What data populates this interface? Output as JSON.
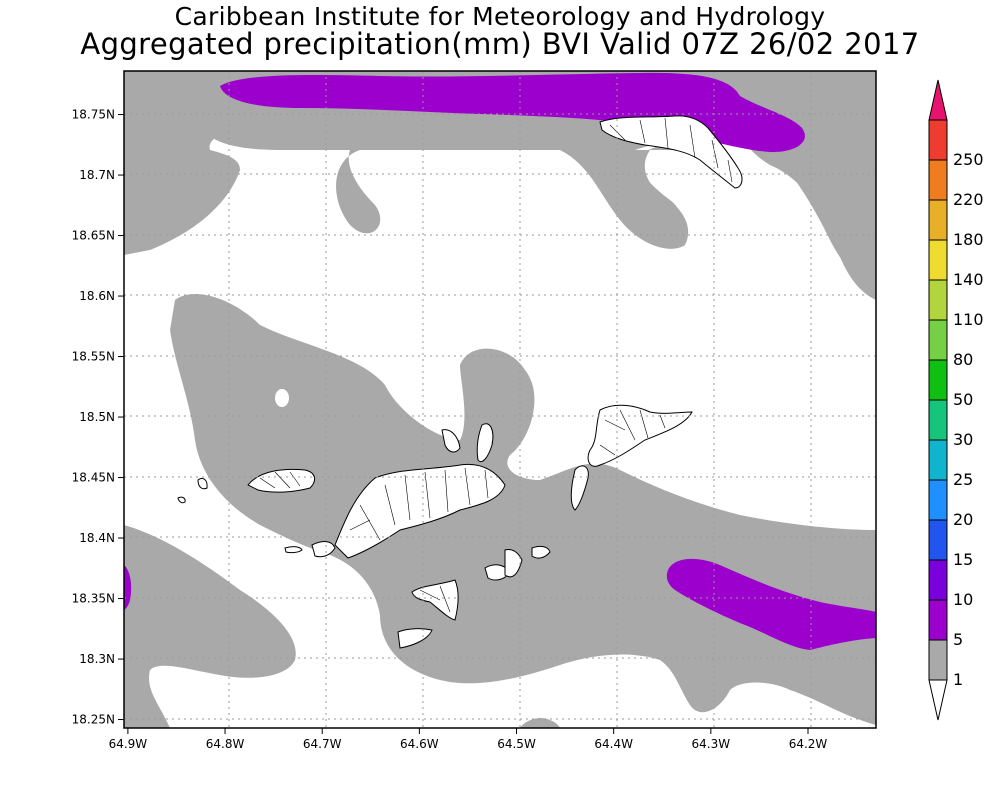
{
  "title": {
    "line1": "Caribbean Institute for Meteorology and Hydrology",
    "line2": "Aggregated precipitation(mm) BVI Valid 07Z 26/02 2017"
  },
  "axes": {
    "x_ticks": [
      "64.9W",
      "64.8W",
      "64.7W",
      "64.6W",
      "64.5W",
      "64.4W",
      "64.3W",
      "64.2W"
    ],
    "y_ticks": [
      "18.75N",
      "18.7N",
      "18.65N",
      "18.6N",
      "18.55N",
      "18.5N",
      "18.45N",
      "18.4N",
      "18.35N",
      "18.3N",
      "18.25N"
    ],
    "x_range": [
      -64.904,
      -64.13
    ],
    "y_range": [
      18.243,
      18.786
    ]
  },
  "colorbar": {
    "labels": [
      "1",
      "5",
      "10",
      "15",
      "20",
      "25",
      "30",
      "50",
      "80",
      "110",
      "140",
      "180",
      "220",
      "250"
    ],
    "colors": [
      "#a9a9a9",
      "#9c00cc",
      "#7a00dc",
      "#2255ee",
      "#1e90ff",
      "#10b4cc",
      "#16c47c",
      "#10c010",
      "#76d046",
      "#b2d43c",
      "#f0dc30",
      "#e8b028",
      "#ef7d20",
      "#ee3c30",
      "#e8136e"
    ]
  },
  "legend_colors": {
    "gray_1_5": "#a9a9a9",
    "purple_5_10": "#9c00cc",
    "land_outline": "#000000",
    "land_fill": "#ffffff"
  }
}
